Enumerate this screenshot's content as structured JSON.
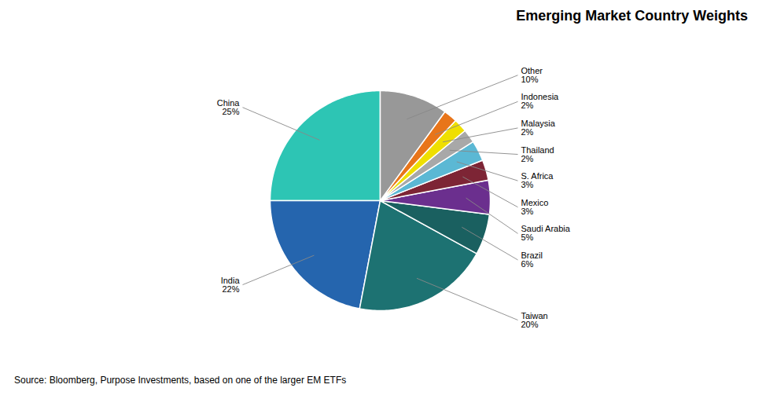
{
  "chart_data": {
    "type": "pie",
    "title": "Emerging Market Country Weights",
    "categories": [
      "China",
      "India",
      "Taiwan",
      "Brazil",
      "Saudi Arabia",
      "Mexico",
      "S. Africa",
      "Thailand",
      "Malaysia",
      "Indonesia",
      "Other"
    ],
    "values": [
      25,
      22,
      20,
      6,
      5,
      3,
      3,
      2,
      2,
      2,
      10
    ],
    "value_labels": [
      "25%",
      "22%",
      "20%",
      "6%",
      "5%",
      "3%",
      "3%",
      "2%",
      "2%",
      "2%",
      "10%"
    ],
    "colors": [
      "#2DC5B4",
      "#2565AE",
      "#1D7272",
      "#1A6060",
      "#6B2F8E",
      "#7D2535",
      "#5BB8D4",
      "#A8A8A8",
      "#EFDF00",
      "#E8751A",
      "#989898"
    ],
    "data_labels": true,
    "caption": "Source: Bloomberg, Purpose Investments, based on one of the larger EM ETFs"
  }
}
